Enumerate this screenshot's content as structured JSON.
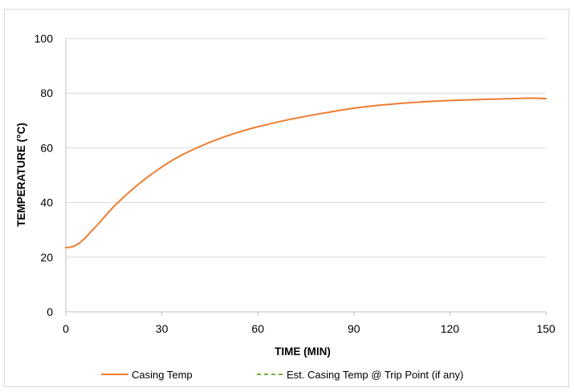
{
  "chart_data": {
    "type": "line",
    "title": "",
    "xlabel": "TIME (MIN)",
    "ylabel": "TEMPERATURE (°C)",
    "xlim": [
      0,
      150
    ],
    "ylim": [
      0,
      100
    ],
    "xticks": [
      0,
      30,
      60,
      90,
      120,
      150
    ],
    "yticks": [
      0,
      20,
      40,
      60,
      80,
      100
    ],
    "grid": "horizontal",
    "legend_position": "bottom",
    "series": [
      {
        "name": "Casing Temp",
        "color": "#ed7d31",
        "style": "solid",
        "x": [
          0,
          2,
          4,
          6,
          8,
          10,
          15,
          20,
          25,
          30,
          35,
          40,
          45,
          50,
          55,
          60,
          70,
          80,
          90,
          100,
          110,
          120,
          130,
          140,
          145,
          150
        ],
        "y": [
          23.5,
          23.8,
          25.0,
          27.0,
          29.5,
          32.0,
          38.5,
          44.0,
          48.8,
          53.0,
          56.6,
          59.5,
          62.0,
          64.2,
          66.1,
          67.7,
          70.4,
          72.6,
          74.5,
          75.8,
          76.7,
          77.3,
          77.7,
          78.0,
          78.2,
          78.0
        ]
      },
      {
        "name": "Est. Casing Temp @ Trip Point (if any)",
        "color": "#70ad47",
        "style": "dashed",
        "x": [],
        "y": []
      }
    ]
  }
}
